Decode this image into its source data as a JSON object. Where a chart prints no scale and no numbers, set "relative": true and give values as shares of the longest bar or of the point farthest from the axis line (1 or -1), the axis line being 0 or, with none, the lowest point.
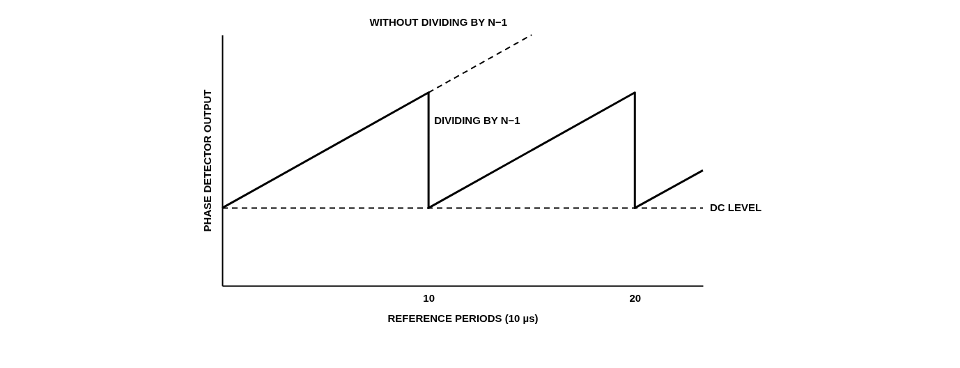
{
  "chart_data": {
    "type": "line",
    "relative": true,
    "xlabel": "REFERENCE PERIODS (10 µs)",
    "ylabel": "PHASE DETECTOR OUTPUT",
    "xlim": [
      0,
      23.3
    ],
    "xticks": [
      10,
      20
    ],
    "grid": false,
    "legend": false,
    "marker": "none",
    "series": [
      {
        "name": "DIVIDING BY N−1",
        "color": "#000000",
        "line_style": "solid",
        "x": [
          0,
          10,
          10,
          20,
          20,
          23.3
        ],
        "values": [
          0.31,
          0.77,
          0.31,
          0.77,
          0.31,
          0.46
        ]
      },
      {
        "name": "WITHOUT DIVIDING BY N−1",
        "color": "#000000",
        "line_style": "dashed",
        "x": [
          10,
          15
        ],
        "values": [
          0.77,
          1.0
        ]
      },
      {
        "name": "DC LEVEL",
        "color": "#000000",
        "line_style": "dashed",
        "x": [
          0,
          23.3
        ],
        "values": [
          0.31,
          0.31
        ]
      }
    ]
  }
}
